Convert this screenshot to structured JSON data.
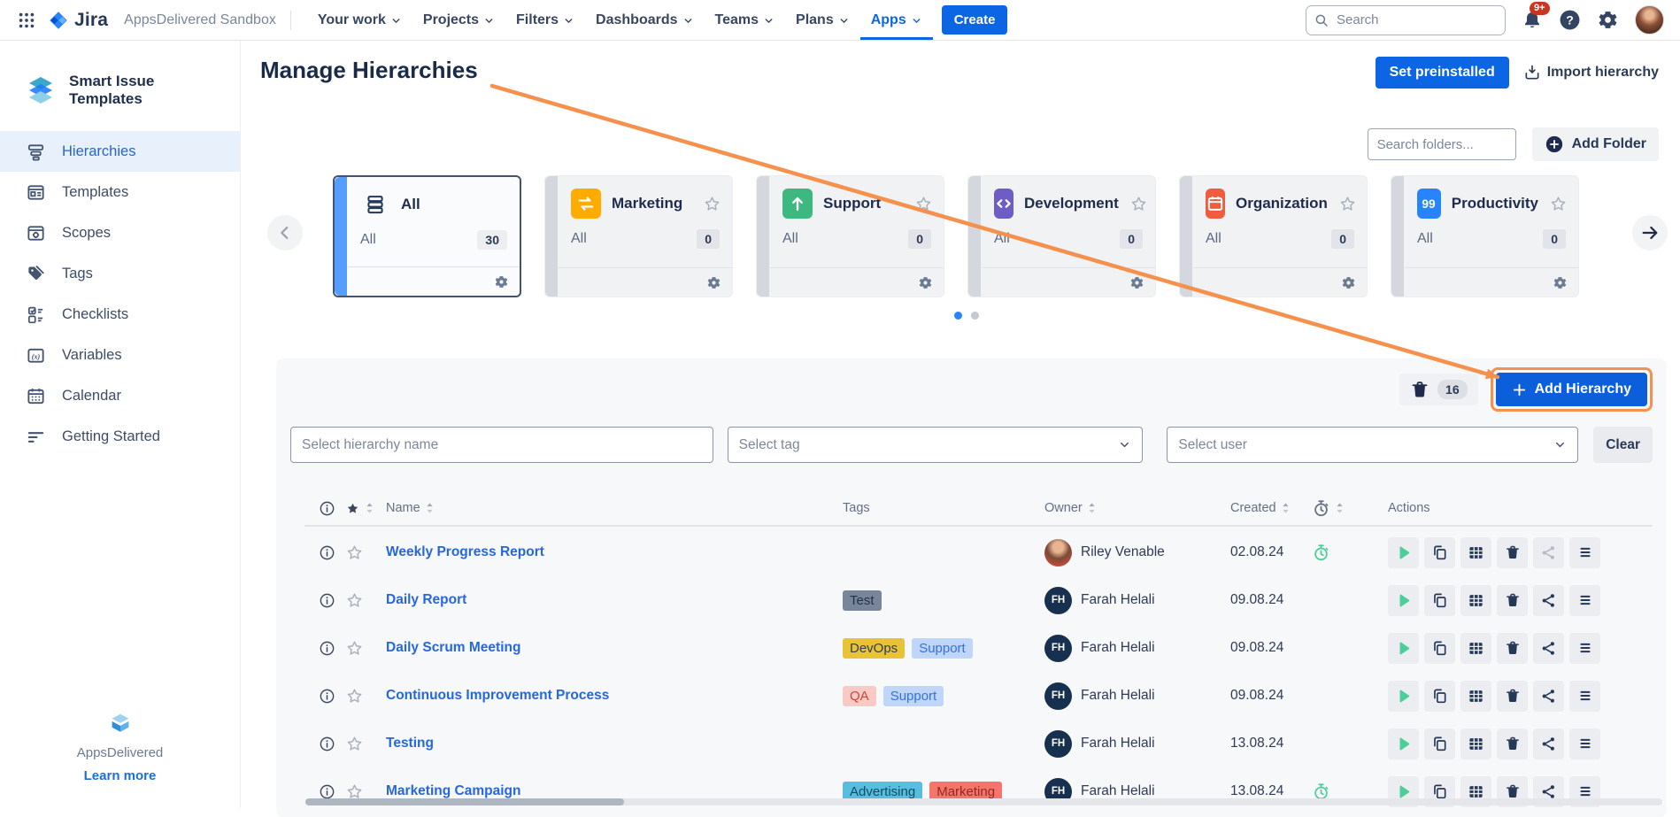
{
  "navbar": {
    "product": "Jira",
    "workspace": "AppsDelivered Sandbox",
    "items": [
      {
        "label": "Your work"
      },
      {
        "label": "Projects"
      },
      {
        "label": "Filters"
      },
      {
        "label": "Dashboards"
      },
      {
        "label": "Teams"
      },
      {
        "label": "Plans"
      },
      {
        "label": "Apps",
        "active": true
      }
    ],
    "create_label": "Create",
    "search_placeholder": "Search",
    "notification_badge": "9+"
  },
  "sidebar": {
    "app_title": "Smart Issue Templates",
    "items": [
      {
        "label": "Hierarchies",
        "icon": "hierarchy-icon",
        "active": true
      },
      {
        "label": "Templates",
        "icon": "templates-icon"
      },
      {
        "label": "Scopes",
        "icon": "scopes-icon"
      },
      {
        "label": "Tags",
        "icon": "tags-icon"
      },
      {
        "label": "Checklists",
        "icon": "checklists-icon"
      },
      {
        "label": "Variables",
        "icon": "variables-icon"
      },
      {
        "label": "Calendar",
        "icon": "calendar-icon"
      },
      {
        "label": "Getting Started",
        "icon": "getting-started-icon"
      }
    ],
    "footer": {
      "brand": "AppsDelivered",
      "link_label": "Learn more"
    }
  },
  "header": {
    "title": "Manage Hierarchies",
    "set_preinstalled_label": "Set preinstalled",
    "import_hierarchy_label": "Import hierarchy"
  },
  "folders": {
    "search_placeholder": "Search folders...",
    "add_folder_label": "Add Folder",
    "cards": [
      {
        "name": "All",
        "sublabel": "All",
        "count": "30",
        "icon": "stack-icon",
        "icon_bg": "transparent",
        "selected": true,
        "show_star": false
      },
      {
        "name": "Marketing",
        "sublabel": "All",
        "count": "0",
        "icon": "exchange-icon",
        "icon_bg": "#FFAB00",
        "show_star": true
      },
      {
        "name": "Support",
        "sublabel": "All",
        "count": "0",
        "icon": "arrow-up-icon",
        "icon_bg": "#3DB87E",
        "show_star": true
      },
      {
        "name": "Development",
        "sublabel": "All",
        "count": "0",
        "icon": "code-icon",
        "icon_bg": "#6E5DC6",
        "show_star": true
      },
      {
        "name": "Organization",
        "sublabel": "All",
        "count": "0",
        "icon": "calendar-red-icon",
        "icon_bg": "#F05C3E",
        "show_star": true
      },
      {
        "name": "Productivity",
        "sublabel": "All",
        "count": "0",
        "icon": "quote-icon",
        "icon_bg": "#2684FF",
        "show_star": true
      }
    ],
    "pagination": {
      "dots": 2,
      "active_index": 0
    }
  },
  "list_panel": {
    "trash_count": "16",
    "add_hierarchy_label": "Add Hierarchy",
    "filters": {
      "name_placeholder": "Select hierarchy name",
      "tag_placeholder": "Select tag",
      "user_placeholder": "Select user",
      "clear_label": "Clear"
    },
    "table": {
      "headers": {
        "name": "Name",
        "tags": "Tags",
        "owner": "Owner",
        "created": "Created",
        "actions": "Actions"
      },
      "rows": [
        {
          "name": "Weekly Progress Report",
          "tags": [],
          "owner": "Riley Venable",
          "avatar": "photo",
          "created": "02.08.24",
          "scheduled": true,
          "share_muted": true
        },
        {
          "name": "Daily Report",
          "tags": [
            {
              "label": "Test",
              "bg": "#798699",
              "color": "#22334D"
            }
          ],
          "owner": "Farah Helali",
          "avatar": "FH",
          "created": "09.08.24",
          "scheduled": false
        },
        {
          "name": "Daily Scrum Meeting",
          "tags": [
            {
              "label": "DevOps",
              "bg": "#E7C335",
              "color": "#313D52"
            },
            {
              "label": "Support",
              "bg": "#BFD5F9",
              "color": "#3572DE"
            }
          ],
          "owner": "Farah Helali",
          "avatar": "FH",
          "created": "09.08.24",
          "scheduled": false
        },
        {
          "name": "Continuous Improvement Process",
          "tags": [
            {
              "label": "QA",
              "bg": "#F7CAC6",
              "color": "#CE4437"
            },
            {
              "label": "Support",
              "bg": "#BFD5F9",
              "color": "#3572DE"
            }
          ],
          "owner": "Farah Helali",
          "avatar": "FH",
          "created": "09.08.24",
          "scheduled": false
        },
        {
          "name": "Testing",
          "tags": [],
          "owner": "Farah Helali",
          "avatar": "FH",
          "created": "13.08.24",
          "scheduled": false
        },
        {
          "name": "Marketing Campaign",
          "tags": [
            {
              "label": "Advertising",
              "bg": "#56BFDF",
              "color": "#174B63"
            },
            {
              "label": "Marketing",
              "bg": "#F5756B",
              "color": "#8F2A22"
            }
          ],
          "owner": "Farah Helali",
          "avatar": "FH",
          "created": "13.08.24",
          "scheduled": true
        }
      ]
    }
  },
  "annotation": {
    "color": "#F5914D"
  }
}
